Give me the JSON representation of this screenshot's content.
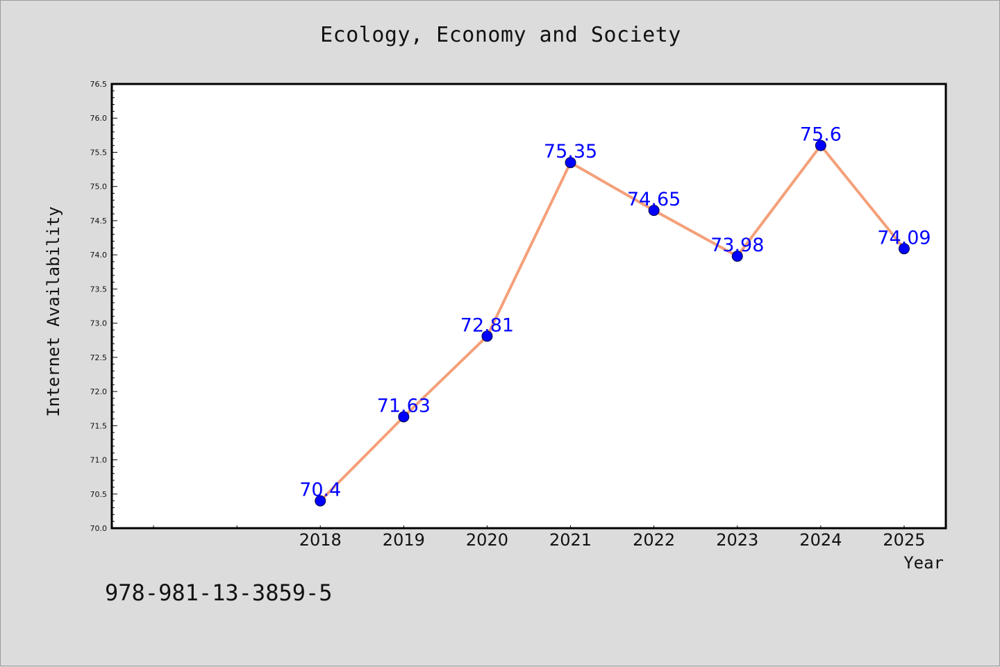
{
  "header": {
    "title": "Ecology, Economy and Society"
  },
  "footer": {
    "isbn": "978-981-13-3859-5"
  },
  "chart_data": {
    "type": "line",
    "title": "Ecology, Economy and Society",
    "xlabel": "Year",
    "ylabel": "Internet Availability",
    "x": [
      "2018",
      "2019",
      "2020",
      "2021",
      "2022",
      "2023",
      "2024",
      "2025"
    ],
    "series": [
      {
        "values": [
          70.4,
          71.63,
          72.81,
          75.35,
          74.65,
          73.98,
          75.6,
          74.09
        ],
        "labels": [
          "70.4",
          "71.63",
          "72.81",
          "75.35",
          "74.65",
          "73.98",
          "75.6",
          "74.09"
        ]
      }
    ],
    "ylim": [
      70.0,
      76.5
    ],
    "yticks": [
      "70.0",
      "70.5",
      "71.0",
      "71.5",
      "72.0",
      "72.5",
      "73.0",
      "73.5",
      "74.0",
      "74.5",
      "75.0",
      "75.5",
      "76.0",
      "76.5"
    ],
    "grid": false,
    "colors": {
      "line": "#f4a07a",
      "marker": "#0000ff",
      "label": "#0000ff",
      "background": "#dcdcdc",
      "plot_area": "#ffffff"
    }
  }
}
